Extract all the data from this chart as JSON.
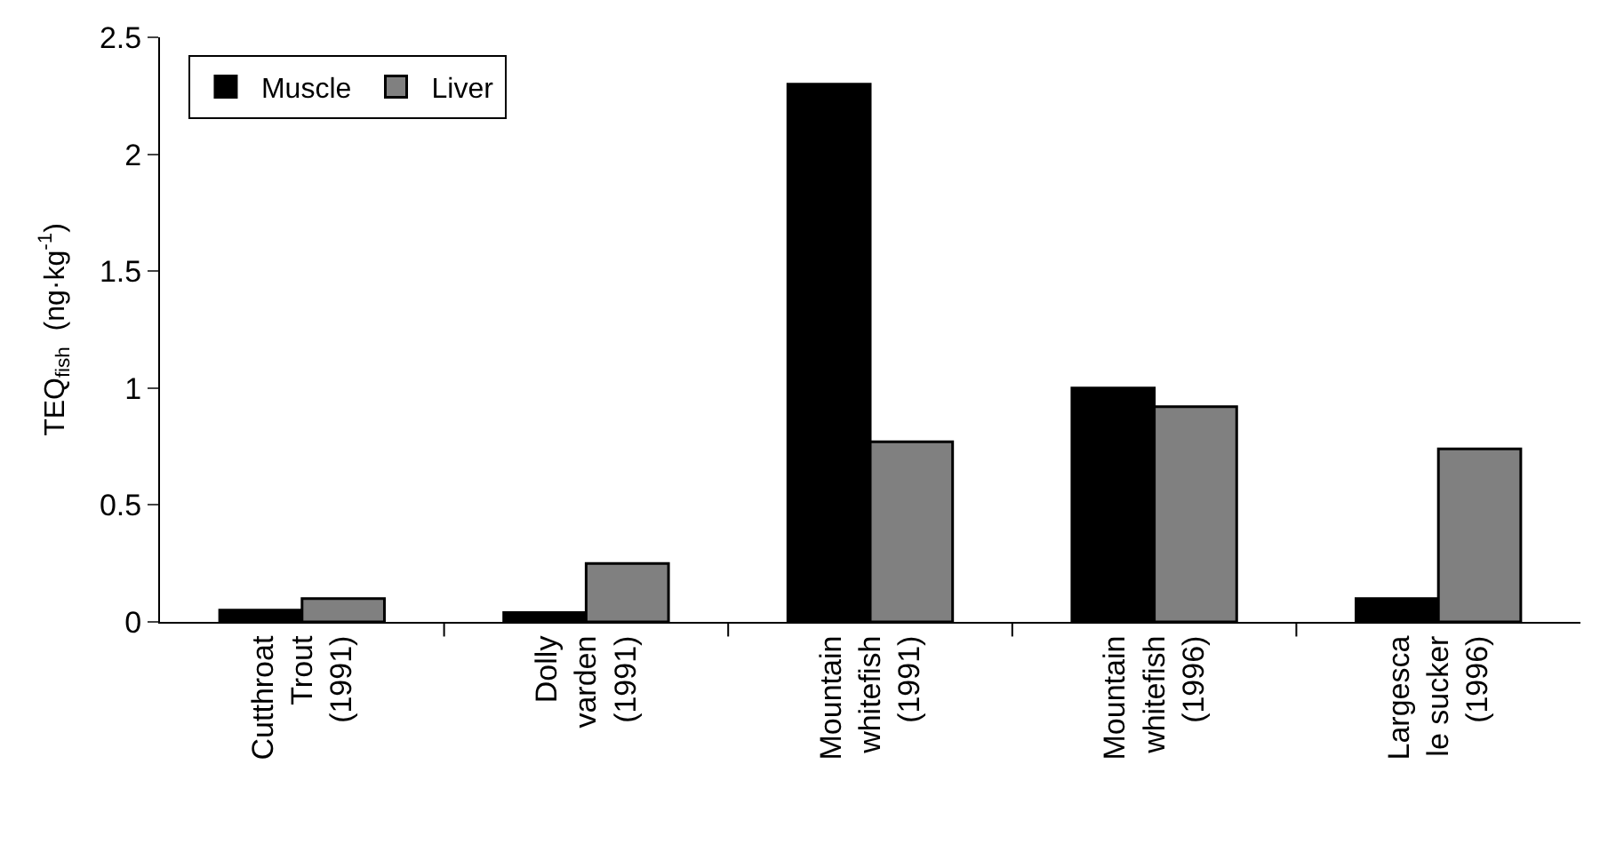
{
  "chart_data": {
    "type": "bar",
    "ylabel": "TEQ$_{fish}$  (ng·kg$^{-1}$)",
    "categories": [
      "Cutthroat\nTrout\n(1991)",
      "Dolly\nvarden\n(1991)",
      "Mountain\nwhitefish\n(1991)",
      "Mountain\nwhitefish\n(1996)",
      "Largesca\nle sucker\n(1996)"
    ],
    "series": [
      {
        "name": "Muscle",
        "color": "#000000",
        "values": [
          0.05,
          0.04,
          2.3,
          1.0,
          0.1
        ]
      },
      {
        "name": "Liver",
        "color": "#808080",
        "values": [
          0.1,
          0.25,
          0.77,
          0.92,
          0.74
        ]
      }
    ],
    "ylim": [
      0,
      2.5
    ],
    "yticks": [
      0,
      0.5,
      1,
      1.5,
      2,
      2.5
    ],
    "legend": "top left"
  }
}
